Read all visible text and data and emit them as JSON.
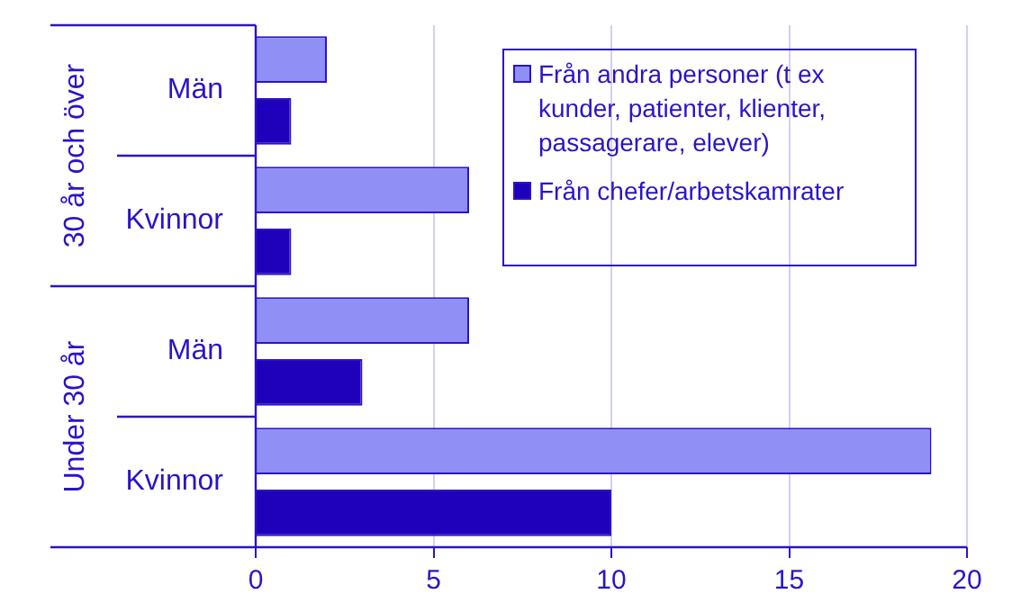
{
  "chart_data": {
    "type": "bar",
    "orientation": "horizontal",
    "categories": [
      "Män",
      "Kvinnor",
      "Män",
      "Kvinnor"
    ],
    "annotations": [
      "30 år och över",
      "Under 30 år"
    ],
    "series": [
      {
        "name": "Från andra personer (t ex kunder, patienter, klienter, passagerare, elever)",
        "color": "#8f8ff5",
        "values": [
          2,
          6,
          6,
          19
        ]
      },
      {
        "name": "Från chefer/arbetskamrater",
        "color": "#1f00bb",
        "values": [
          1,
          1,
          3,
          10
        ]
      }
    ],
    "xlim": [
      0,
      20
    ],
    "xticks": [
      0,
      5,
      10,
      15,
      20
    ],
    "grid": "x",
    "legend": "top right"
  }
}
